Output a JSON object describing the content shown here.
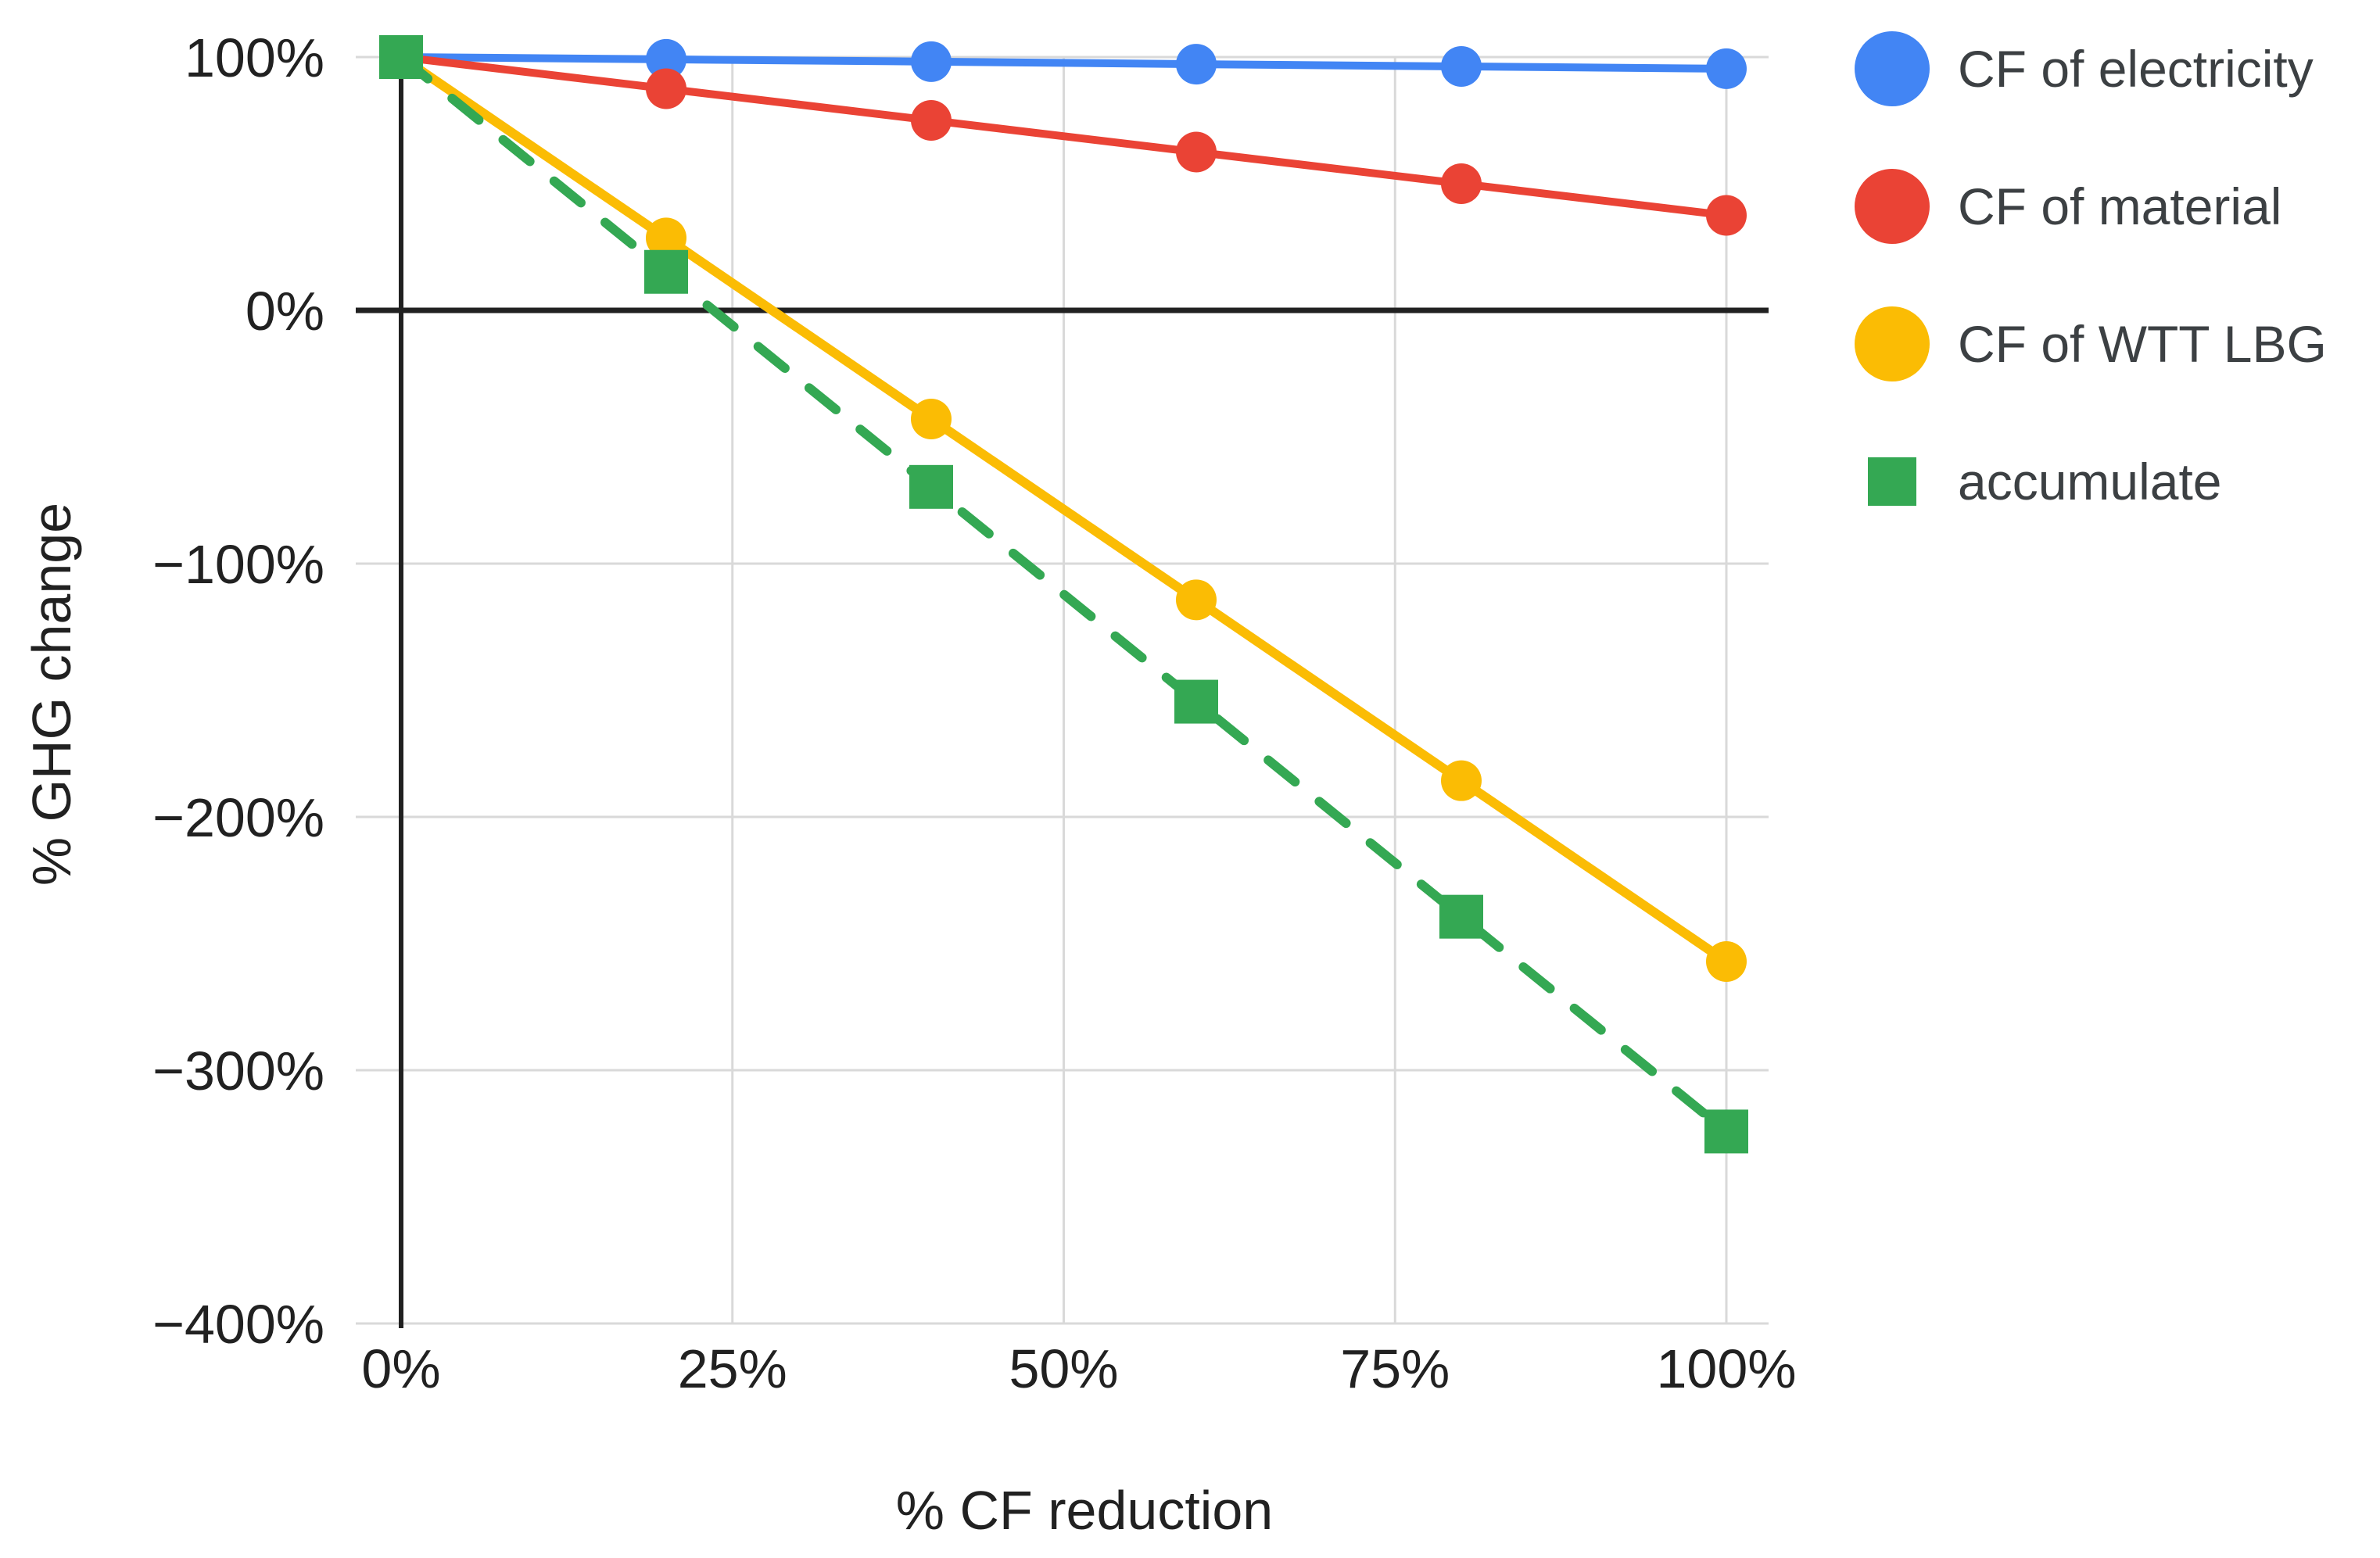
{
  "chart_data": {
    "type": "line",
    "title": "",
    "xlabel": "% CF reduction",
    "ylabel": "% GHG change",
    "x": [
      0,
      20,
      40,
      60,
      80,
      100
    ],
    "xlim": [
      0,
      100
    ],
    "ylim": [
      -400,
      100
    ],
    "grid": true,
    "legend_position": "right",
    "series": [
      {
        "name": "CF of electricity",
        "color": "#4285F4",
        "marker": "circle",
        "line_style": "solid",
        "values": [
          100,
          99.1,
          98.2,
          97.2,
          96.3,
          95.4
        ]
      },
      {
        "name": "CF of material",
        "color": "#EA4335",
        "marker": "circle",
        "line_style": "solid",
        "values": [
          100,
          87.5,
          75,
          62.5,
          50,
          37.5
        ]
      },
      {
        "name": "CF of WTT LBG",
        "color": "#FBBC04",
        "marker": "circle",
        "line_style": "solid",
        "values": [
          100,
          28.6,
          -42.9,
          -114.3,
          -185.7,
          -257.1
        ]
      },
      {
        "name": "accumulate",
        "color": "#34A853",
        "marker": "square",
        "line_style": "dashed",
        "values": [
          100,
          15.2,
          -69.7,
          -154.5,
          -239.4,
          -324.2
        ]
      }
    ],
    "y_ticks": [
      {
        "value": 100,
        "label": "100%"
      },
      {
        "value": 0,
        "label": "0%"
      },
      {
        "value": -100,
        "label": "−100%"
      },
      {
        "value": -200,
        "label": "−200%"
      },
      {
        "value": -300,
        "label": "−300%"
      },
      {
        "value": -400,
        "label": "−400%"
      }
    ],
    "x_ticks": [
      {
        "value": 0,
        "label": "0%"
      },
      {
        "value": 25,
        "label": "25%"
      },
      {
        "value": 50,
        "label": "50%"
      },
      {
        "value": 75,
        "label": "75%"
      },
      {
        "value": 100,
        "label": "100%"
      }
    ]
  },
  "colors": {
    "background": "#FFFFFF",
    "gridline": "#D9D9D9",
    "zero_line": "#212121",
    "axis_line": "#212121",
    "tick_text": "#212121",
    "axis_title_text": "#212121",
    "legend_text": "#3C4043"
  }
}
